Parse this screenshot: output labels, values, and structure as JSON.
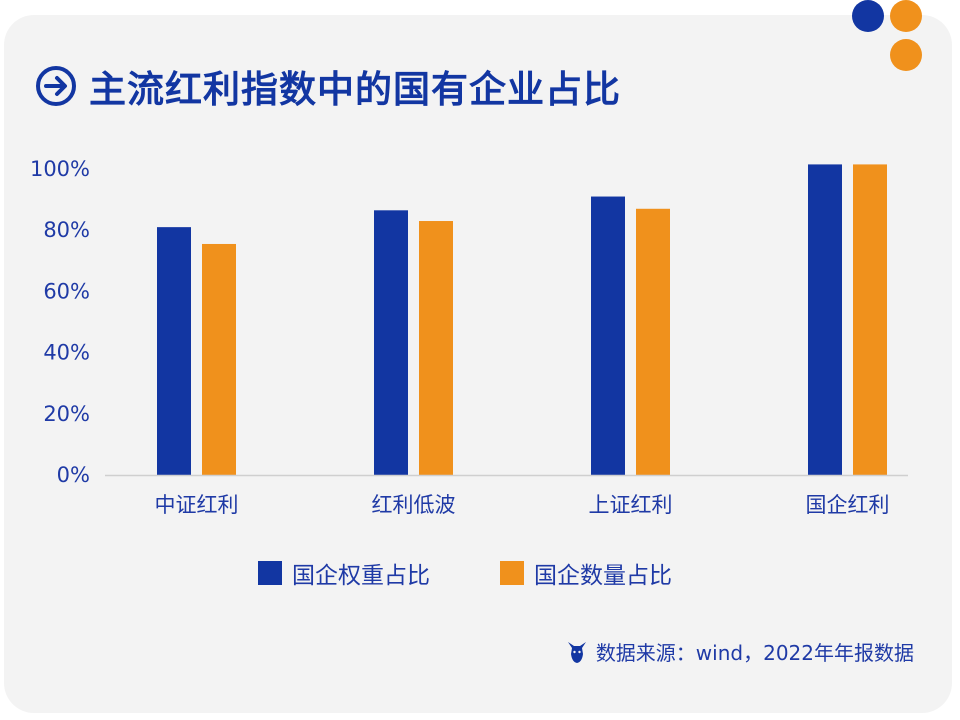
{
  "title": "主流红利指数中的国有企业占比",
  "source": "数据来源：wind，2022年年报数据",
  "colors": {
    "card": "#f3f3f3",
    "blue": "#1236a2",
    "orange": "#f0911c",
    "axis": "#cfcfcf"
  },
  "icons": {
    "title": "arrow-right-circle-icon",
    "source": "bull-icon"
  },
  "chart_data": {
    "type": "bar",
    "categories": [
      "中证红利",
      "红利低波",
      "上证红利",
      "国企红利"
    ],
    "series": [
      {
        "name": "国企权重占比",
        "values": [
          81,
          86.5,
          91,
          101.5
        ],
        "color": "#1236a2"
      },
      {
        "name": "国企数量占比",
        "values": [
          75.5,
          83,
          87,
          101.5
        ],
        "color": "#f0911c"
      }
    ],
    "yticks": [
      "0%",
      "20%",
      "40%",
      "60%",
      "80%",
      "100%"
    ],
    "ylim": [
      0,
      100
    ],
    "legend": "bottom",
    "grid": false
  }
}
